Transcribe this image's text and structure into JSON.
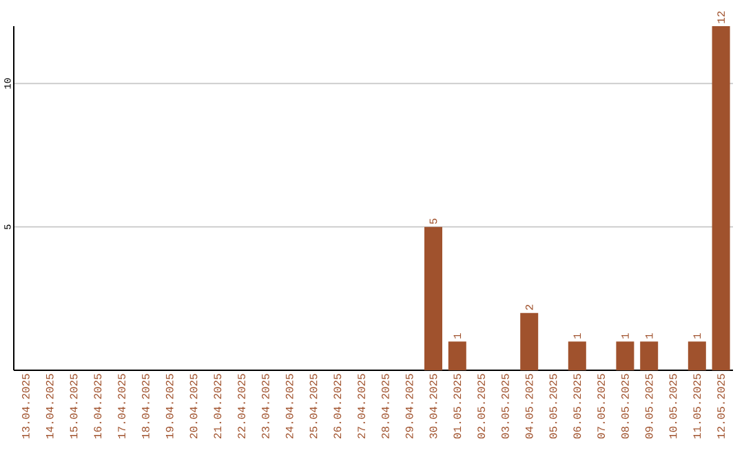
{
  "chart_data": {
    "type": "bar",
    "categories": [
      "13.04.2025",
      "14.04.2025",
      "15.04.2025",
      "16.04.2025",
      "17.04.2025",
      "18.04.2025",
      "19.04.2025",
      "20.04.2025",
      "21.04.2025",
      "22.04.2025",
      "23.04.2025",
      "24.04.2025",
      "25.04.2025",
      "26.04.2025",
      "27.04.2025",
      "28.04.2025",
      "29.04.2025",
      "30.04.2025",
      "01.05.2025",
      "02.05.2025",
      "03.05.2025",
      "04.05.2025",
      "05.05.2025",
      "06.05.2025",
      "07.05.2025",
      "08.05.2025",
      "09.05.2025",
      "10.05.2025",
      "11.05.2025",
      "12.05.2025"
    ],
    "values": [
      0,
      0,
      0,
      0,
      0,
      0,
      0,
      0,
      0,
      0,
      0,
      0,
      0,
      0,
      0,
      0,
      0,
      5,
      1,
      0,
      0,
      2,
      0,
      1,
      0,
      1,
      1,
      0,
      1,
      12
    ],
    "value_labels": [
      null,
      null,
      null,
      null,
      null,
      null,
      null,
      null,
      null,
      null,
      null,
      null,
      null,
      null,
      null,
      null,
      null,
      "5",
      "1",
      null,
      null,
      "2",
      null,
      "1",
      null,
      "1",
      "1",
      null,
      "1",
      "12"
    ],
    "color": "#a0522d",
    "ylim": [
      0,
      12
    ],
    "yticks": [
      5,
      10
    ],
    "grid": "y"
  }
}
